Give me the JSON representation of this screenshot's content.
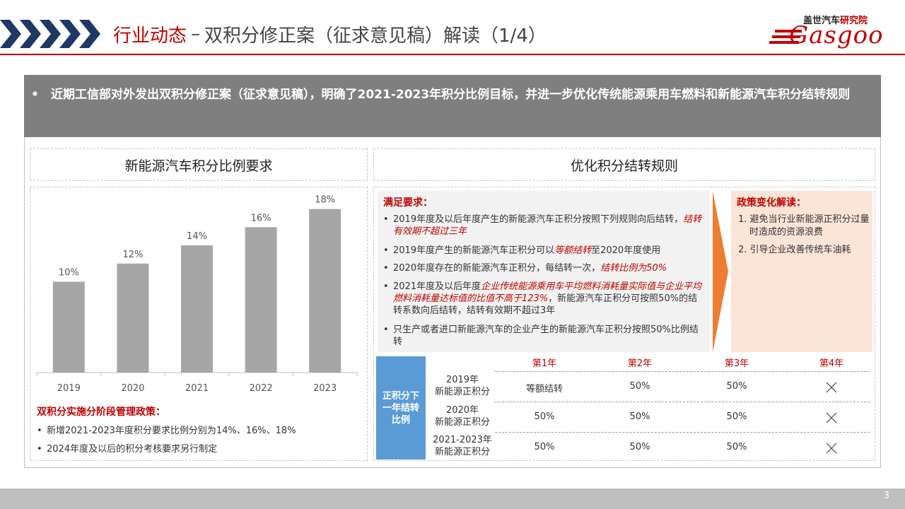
{
  "header": {
    "title_main": "行业动态",
    "title_sep": "–",
    "title_sub": "双积分修正案（征求意见稿）解读（1/4）",
    "logo_top": "盖世汽车",
    "logo_top_red": "研究院",
    "logo_word": "Gasgoo"
  },
  "banner": {
    "bullet": "•",
    "text": "近期工信部对外发出双积分修正案（征求意见稿），明确了2021-2023年积分比例目标，并进一步优化传统能源乘用车燃料和新能源汽车积分结转规则"
  },
  "left_panel": {
    "heading": "新能源汽车积分比例要求"
  },
  "chart_data": {
    "type": "bar",
    "categories": [
      "2019",
      "2020",
      "2021",
      "2022",
      "2023"
    ],
    "values": [
      10,
      12,
      14,
      16,
      18
    ],
    "data_labels": [
      "10%",
      "12%",
      "14%",
      "16%",
      "18%"
    ],
    "ylim": [
      0,
      20
    ],
    "bar_color": "#a6a6a6",
    "grid": false,
    "title": "",
    "xlabel": "",
    "ylabel": ""
  },
  "policy": {
    "title": "双积分实施分阶段管理政策：",
    "items": [
      "新增2021-2023年度积分要求比例分别为14%、16%、18%",
      "2024年度及以后的积分考核要求另行制定"
    ]
  },
  "right_panel": {
    "heading": "优化积分结转规则",
    "requirements_title": "满足要求：",
    "rules": [
      {
        "plain": "2019年度及以后年度产生的新能源汽车正积分按照下列规则向后结转，",
        "hl": "结转有效期不超过三年",
        "plain2": ""
      },
      {
        "plain": "2019年度产生的新能源汽车正积分可以",
        "hl": "等额结转",
        "plain2": "至2020年度使用"
      },
      {
        "plain": "2020年度存在的新能源汽车正积分，每结转一次，",
        "hl": "结转比例为50%",
        "plain2": ""
      },
      {
        "plain": "2021年度及以后年度",
        "hl": "企业传统能源乘用车平均燃料消耗量实际值与企业平均燃料消耗量达标值的比值不高于123%",
        "plain2": "，新能源汽车正积分可按照50%的结转系数向后结转，结转有效期不超过3年"
      },
      {
        "plain": "只生产或者进口新能源汽车的企业产生的新能源汽车正积分按照50%比例结转",
        "hl": "",
        "plain2": ""
      }
    ],
    "interpretation_title": "政策变化解读：",
    "interpretation": [
      "1. 避免当行业新能源正积分过量时造成的资源浪费",
      "2. 引导企业改善传统车油耗"
    ]
  },
  "table": {
    "label": "正积分下一年结转比例",
    "columns": [
      "第1年",
      "第2年",
      "第3年",
      "第4年"
    ],
    "rows": [
      {
        "label_l1": "2019年",
        "label_l2": "新能源正积分",
        "cells": [
          "等额结转",
          "50%",
          "50%"
        ]
      },
      {
        "label_l1": "2020年",
        "label_l2": "新能源正积分",
        "cells": [
          "50%",
          "50%",
          "50%"
        ]
      },
      {
        "label_l1": "2021-2023年",
        "label_l2": "新能源正积分",
        "cells": [
          "50%",
          "50%",
          "50%"
        ]
      }
    ]
  },
  "footer": {
    "page_number": "3"
  },
  "colors": {
    "accent_red": "#c00000",
    "banner_gray": "#7f7f7f",
    "table_blue": "#5b9bd5",
    "interp_bg": "#fbe5d6",
    "arrow_orange": "#ed7d31",
    "chevron_navy": "#1f3864"
  }
}
